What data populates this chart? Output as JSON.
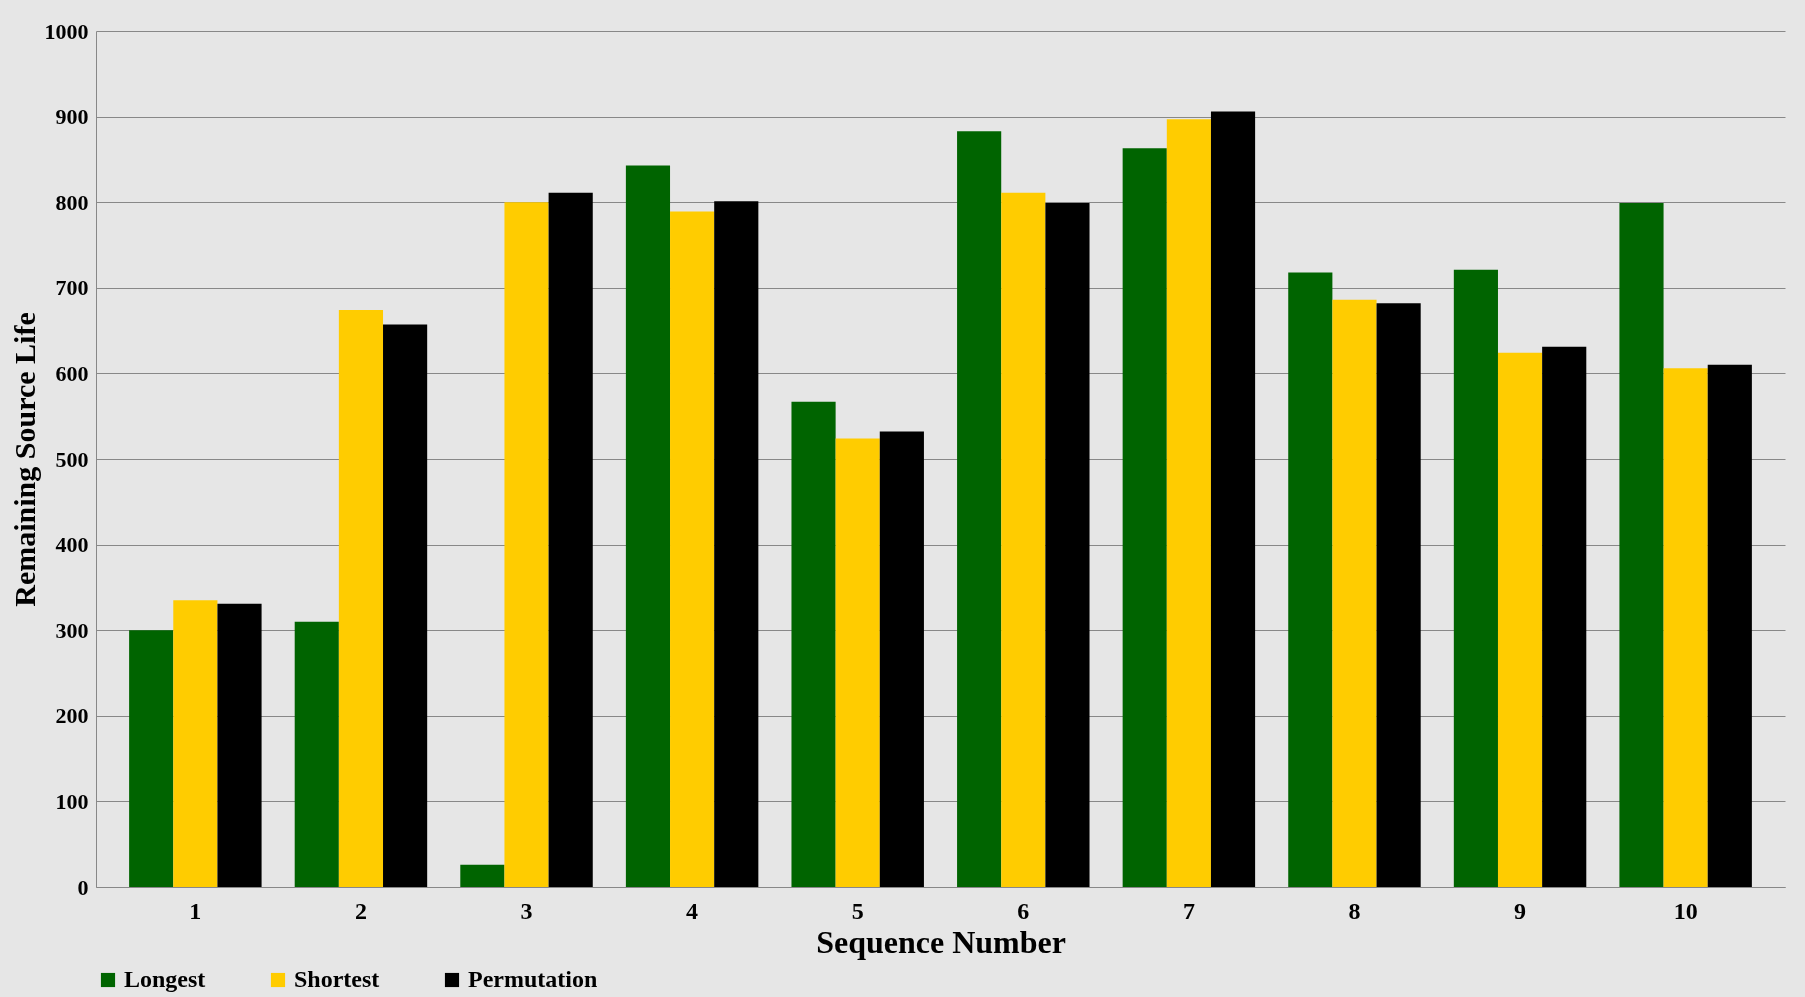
{
  "chart_data": {
    "type": "bar",
    "xlabel": "Sequence Number",
    "ylabel": "Remaining Source Life",
    "categories": [
      "1",
      "2",
      "3",
      "4",
      "5",
      "6",
      "7",
      "8",
      "9",
      "10"
    ],
    "series": [
      {
        "name": "Longest",
        "color": "#006400",
        "values": [
          300,
          310,
          26,
          843,
          567,
          883,
          863,
          718,
          721,
          799
        ]
      },
      {
        "name": "Shortest",
        "color": "#ffcc00",
        "values": [
          335,
          674,
          800,
          789,
          524,
          811,
          897,
          686,
          624,
          606
        ]
      },
      {
        "name": "Permutation",
        "color": "#000000",
        "values": [
          331,
          657,
          811,
          801,
          532,
          799,
          906,
          682,
          631,
          610
        ]
      }
    ],
    "ylim": [
      0,
      1000
    ],
    "yticks": [
      0,
      100,
      200,
      300,
      400,
      500,
      600,
      700,
      800,
      900,
      1000
    ],
    "grid": "y",
    "legend": "bottom left"
  }
}
